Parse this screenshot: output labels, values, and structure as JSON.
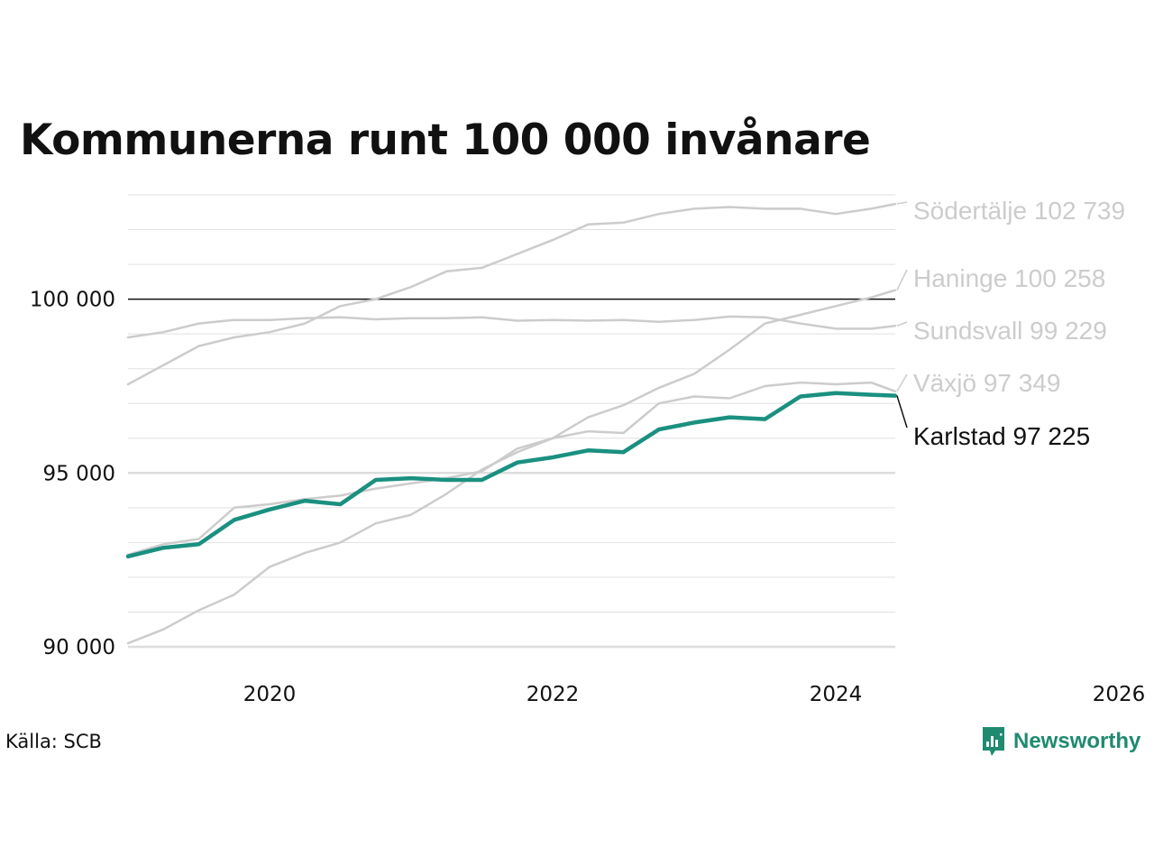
{
  "title": "Kommunerna runt 100 000 invånare",
  "source": "Källa: SCB",
  "brand": {
    "name": "Newsworthy",
    "icon": "newsworthy-logo-icon",
    "color": "#1f8a70"
  },
  "chart_data": {
    "type": "line",
    "title": "Kommunerna runt 100 000 invånare",
    "xlabel": "",
    "ylabel": "",
    "xlim": [
      2019.0,
      2026.0
    ],
    "ylim": [
      90000,
      103000
    ],
    "x_ticks": [
      {
        "value": 2020,
        "label": "2020"
      },
      {
        "value": 2022,
        "label": "2022"
      },
      {
        "value": 2024,
        "label": "2024"
      },
      {
        "value": 2026,
        "label": "2026"
      }
    ],
    "y_ticks": [
      {
        "value": 90000,
        "label": "90 000"
      },
      {
        "value": 95000,
        "label": "95 000"
      },
      {
        "value": 100000,
        "label": "100 000"
      }
    ],
    "minor_gridlines_every": 1000,
    "reference_line": 100000,
    "colors": {
      "highlight": "#1a9080",
      "muted": "#cccccc",
      "grid": "#e0e0e0",
      "reference": "#111111"
    },
    "legend": "direct labels at right end of lines",
    "x": [
      2019.0,
      2019.25,
      2019.5,
      2019.75,
      2020.0,
      2020.25,
      2020.5,
      2020.75,
      2021.0,
      2021.25,
      2021.5,
      2021.75,
      2022.0,
      2022.25,
      2022.5,
      2022.75,
      2023.0,
      2023.25,
      2023.5,
      2023.75,
      2024.0,
      2024.25,
      2024.42
    ],
    "series": [
      {
        "name": "Södertälje",
        "label": "Södertälje 102 739",
        "highlight": false,
        "values": [
          97550,
          98100,
          98650,
          98900,
          99050,
          99300,
          99800,
          100000,
          100350,
          100800,
          100900,
          101300,
          101700,
          102150,
          102200,
          102450,
          102600,
          102650,
          102600,
          102600,
          102450,
          102600,
          102739
        ]
      },
      {
        "name": "Haninge",
        "label": "Haninge 100 258",
        "highlight": false,
        "values": [
          90100,
          90500,
          91050,
          91500,
          92300,
          92700,
          93000,
          93550,
          93800,
          94400,
          95100,
          95600,
          96000,
          96600,
          96950,
          97450,
          97850,
          98550,
          99300,
          99550,
          99800,
          100050,
          100258
        ]
      },
      {
        "name": "Sundsvall",
        "label": "Sundsvall  99 229",
        "highlight": false,
        "values": [
          98900,
          99050,
          99300,
          99400,
          99400,
          99450,
          99480,
          99420,
          99450,
          99450,
          99480,
          99380,
          99400,
          99380,
          99400,
          99350,
          99400,
          99500,
          99480,
          99300,
          99150,
          99150,
          99229
        ]
      },
      {
        "name": "Växjö",
        "label": "Växjö  97 349",
        "highlight": false,
        "values": [
          92650,
          92950,
          93100,
          94000,
          94100,
          94250,
          94350,
          94550,
          94700,
          94850,
          95050,
          95700,
          96000,
          96200,
          96150,
          97000,
          97200,
          97150,
          97500,
          97600,
          97550,
          97600,
          97349
        ]
      },
      {
        "name": "Karlstad",
        "label": "Karlstad  97 225",
        "highlight": true,
        "values": [
          92600,
          92850,
          92950,
          93650,
          93950,
          94200,
          94100,
          94800,
          94850,
          94800,
          94800,
          95300,
          95450,
          95650,
          95600,
          96250,
          96450,
          96600,
          96550,
          97200,
          97300,
          97250,
          97225
        ]
      }
    ]
  }
}
